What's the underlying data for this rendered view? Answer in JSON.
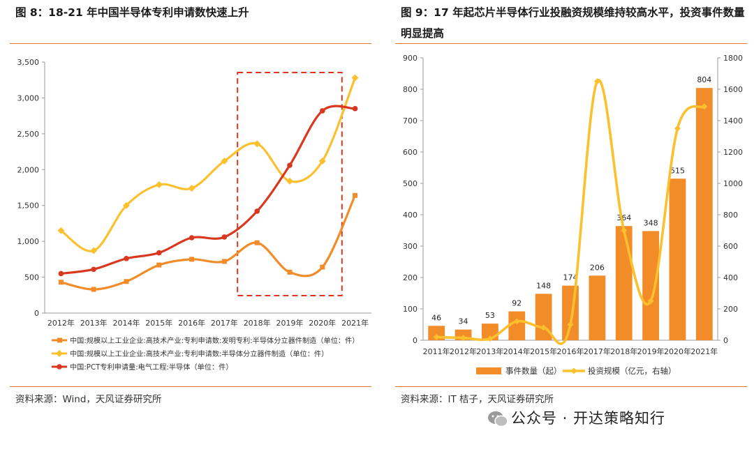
{
  "left": {
    "title": "图 8：18-21 年中国半导体专利申请数快速上升",
    "source": "资料来源：Wind，天风证券研究所"
  },
  "right": {
    "title_line1": "图 9：17 年起芯片半导体行业投融资规模维持较高水平，投资事件数量",
    "title_line2": "明显提高",
    "source": "资料来源：IT 桔子，天风证券研究所"
  },
  "watermark": "公众号 · 开达策略知行",
  "colors": {
    "orange": "#f28c28",
    "yellow": "#fbc02d",
    "red": "#d9381e",
    "accent": "#e8742a",
    "bar": "#f28c28"
  },
  "chart_data": [
    {
      "type": "line",
      "title": "18-21 年中国半导体专利申请数快速上升",
      "categories": [
        "2012年",
        "2013年",
        "2014年",
        "2015年",
        "2016年",
        "2017年",
        "2018年",
        "2019年",
        "2020年",
        "2021年"
      ],
      "ylim": [
        0,
        3500
      ],
      "yticks": [
        0,
        500,
        1000,
        1500,
        2000,
        2500,
        3000,
        3500
      ],
      "ytick_labels": [
        "0",
        "500",
        "1,000",
        "1,500",
        "2,000",
        "2,500",
        "3,000",
        "3,500"
      ],
      "highlight_range": [
        "2018年",
        "2020年"
      ],
      "series": [
        {
          "name": "中国:规模以上工业企业:高技术产业:专利申请数:发明专利:半导体分立器件制造（单位：件）",
          "color": "#f28c28",
          "marker": "square",
          "values": [
            430,
            330,
            440,
            670,
            750,
            720,
            980,
            570,
            640,
            1640
          ]
        },
        {
          "name": "中国:规模以上工业企业:高技术产业:专利申请数:半导体分立器件制造（单位：件）",
          "color": "#fbc02d",
          "marker": "diamond",
          "values": [
            1150,
            870,
            1500,
            1790,
            1740,
            2120,
            2360,
            1840,
            2120,
            3280
          ]
        },
        {
          "name": "中国:PCT专利申请量:电气工程:半导体（单位：件）",
          "color": "#d9381e",
          "marker": "circle",
          "values": [
            550,
            610,
            760,
            840,
            1050,
            1060,
            1420,
            2060,
            2820,
            2850
          ]
        }
      ]
    },
    {
      "type": "bar+line",
      "title": "17 年起芯片半导体行业投融资规模维持较高水平，投资事件数量明显提高",
      "categories": [
        "2011年",
        "2012年",
        "2013年",
        "2014年",
        "2015年",
        "2016年",
        "2017年",
        "2018年",
        "2019年",
        "2020年",
        "2021年"
      ],
      "ylim_left": [
        0,
        900
      ],
      "yticks_left": [
        0,
        100,
        200,
        300,
        400,
        500,
        600,
        700,
        800,
        900
      ],
      "ylim_right": [
        0,
        1800
      ],
      "yticks_right": [
        0,
        200,
        400,
        600,
        800,
        1000,
        1200,
        1400,
        1600,
        1800
      ],
      "bar_series": {
        "name": "事件数量（起）",
        "color": "#f28c28",
        "values": [
          46,
          34,
          53,
          92,
          148,
          174,
          206,
          364,
          348,
          515,
          804
        ],
        "labels": [
          "46",
          "34",
          "53",
          "92",
          "148",
          "174",
          "206",
          "364",
          "348",
          "515",
          "804"
        ]
      },
      "line_series": {
        "name": "投资规模（亿元，右轴）",
        "color": "#fbc02d",
        "axis": "right",
        "values": [
          20,
          15,
          10,
          120,
          80,
          100,
          1650,
          700,
          250,
          1350,
          1490
        ]
      }
    }
  ]
}
